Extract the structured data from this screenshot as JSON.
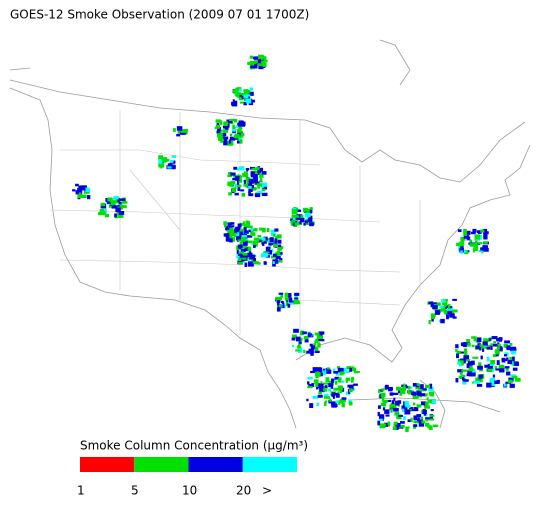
{
  "title": "GOES-12 Smoke Observation (2009 07 01  1700Z)",
  "legend": {
    "title": "Smoke Column Concentration (μg/m³)",
    "labels": [
      "1",
      "5",
      "10",
      "20",
      ">"
    ],
    "colors": [
      "#ff0000",
      "#00e000",
      "#0000e0",
      "#00ffff"
    ]
  }
}
